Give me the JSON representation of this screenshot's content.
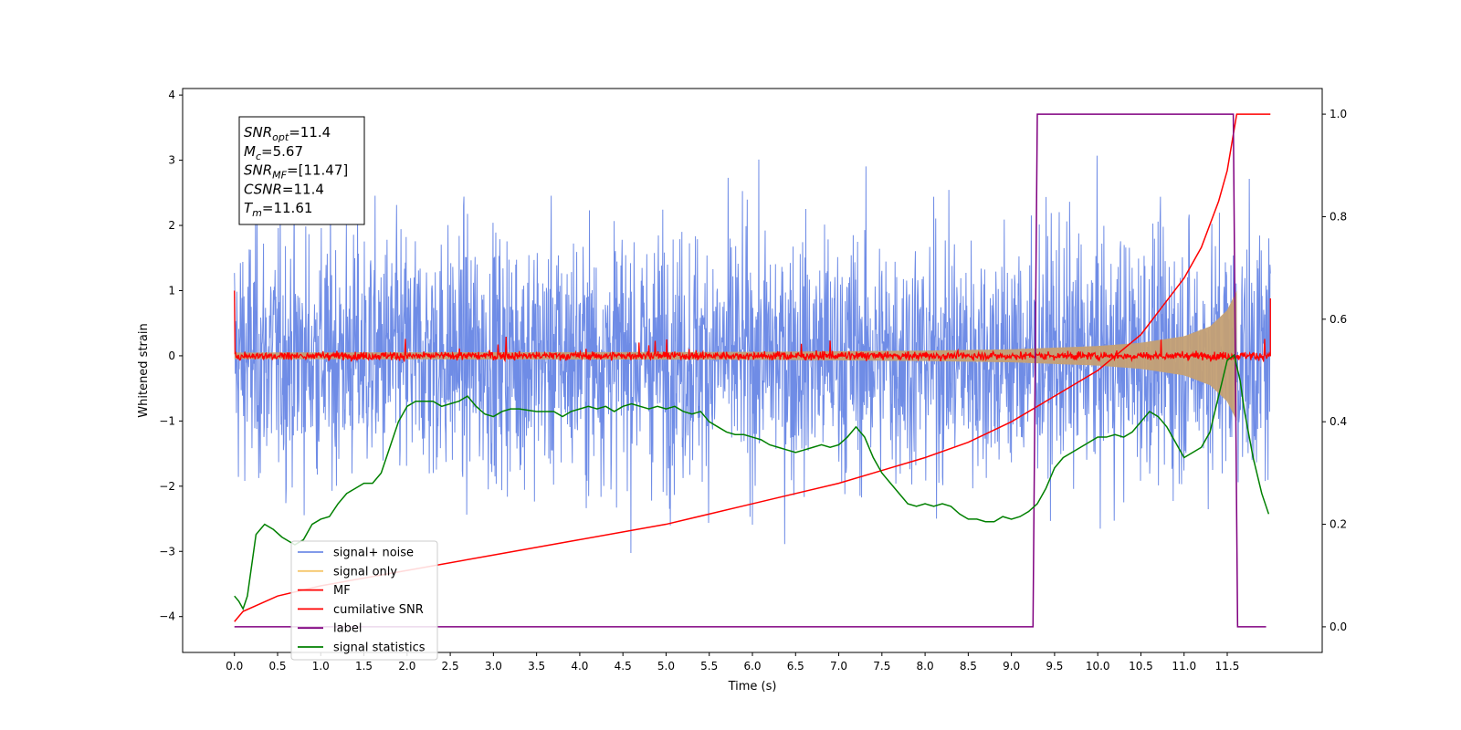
{
  "chart_data": {
    "type": "line",
    "title": "",
    "xlabel": "Time (s)",
    "ylabel": "Whitened strain",
    "xlim": [
      -0.6,
      12.6
    ],
    "ylim": [
      -4.55,
      4.1
    ],
    "y2lim": [
      -0.05,
      1.05
    ],
    "x_ticks": [
      0.0,
      0.5,
      1.0,
      1.5,
      2.0,
      2.5,
      3.0,
      3.5,
      4.0,
      4.5,
      5.0,
      5.5,
      6.0,
      6.5,
      7.0,
      7.5,
      8.0,
      8.5,
      9.0,
      9.5,
      10.0,
      10.5,
      11.0,
      11.5
    ],
    "x_tick_labels": [
      "0.0",
      "0.5",
      "1.0",
      "1.5",
      "2.0",
      "2.5",
      "3.0",
      "3.5",
      "4.0",
      "4.5",
      "5.0",
      "5.5",
      "6.0",
      "6.5",
      "7.0",
      "7.5",
      "8.0",
      "8.5",
      "9.0",
      "9.5",
      "10.0",
      "10.5",
      "11.0",
      "11.5"
    ],
    "y_ticks": [
      4,
      3,
      2,
      1,
      0,
      -1,
      -2,
      -3,
      -4
    ],
    "y_tick_labels": [
      "4",
      "3",
      "2",
      "1",
      "0",
      "−1",
      "−2",
      "−3",
      "−4"
    ],
    "y2_ticks": [
      1.0,
      0.8,
      0.6,
      0.4,
      0.2,
      0.0
    ],
    "y2_tick_labels": [
      "1.0",
      "0.8",
      "0.6",
      "0.4",
      "0.2",
      "0.0"
    ],
    "grid": false,
    "legend_position": "lower-left",
    "annotation": [
      {
        "base": "SNR",
        "sub": "opt",
        "rest": "=11.4"
      },
      {
        "base": "M",
        "sub": "c",
        "rest": "=5.67"
      },
      {
        "base": "SNR",
        "sub": "MF",
        "rest": "=[11.47]"
      },
      {
        "base": "CSNR",
        "sub": "",
        "rest": "=11.4"
      },
      {
        "base": "T",
        "sub": "m",
        "rest": "=11.61"
      }
    ],
    "series": [
      {
        "name": "signal+ noise",
        "color": "#6f8ce6",
        "axis": "left",
        "kind": "noise_band",
        "x_range": [
          0.0,
          12.0
        ],
        "typical_amplitude": 1.8,
        "min": -4.15,
        "max": 3.7
      },
      {
        "name": "signal only",
        "color": "#f5c76c",
        "axis": "left",
        "kind": "chirp_envelope",
        "x_range": [
          0.0,
          11.61
        ],
        "envelope_points": [
          [
            0.0,
            0.05
          ],
          [
            6.0,
            0.06
          ],
          [
            8.0,
            0.08
          ],
          [
            9.0,
            0.1
          ],
          [
            10.0,
            0.15
          ],
          [
            10.5,
            0.2
          ],
          [
            11.0,
            0.3
          ],
          [
            11.3,
            0.45
          ],
          [
            11.5,
            0.7
          ],
          [
            11.61,
            1.0
          ]
        ]
      },
      {
        "name": "MF",
        "color": "#ff0000",
        "axis": "left",
        "kind": "noise_band",
        "x_range": [
          0.0,
          12.0
        ],
        "typical_amplitude": 0.12,
        "min": -0.15,
        "max": 0.3,
        "edge_values": [
          1.0,
          0.88
        ]
      },
      {
        "name": "cumilative SNR",
        "color": "#ff0000",
        "axis": "right",
        "points": [
          [
            0.0,
            0.01
          ],
          [
            0.1,
            0.03
          ],
          [
            0.5,
            0.06
          ],
          [
            1.0,
            0.08
          ],
          [
            2.0,
            0.11
          ],
          [
            3.0,
            0.14
          ],
          [
            4.0,
            0.17
          ],
          [
            5.0,
            0.2
          ],
          [
            6.0,
            0.24
          ],
          [
            7.0,
            0.28
          ],
          [
            7.5,
            0.305
          ],
          [
            8.0,
            0.33
          ],
          [
            8.5,
            0.36
          ],
          [
            9.0,
            0.4
          ],
          [
            9.5,
            0.45
          ],
          [
            10.0,
            0.5
          ],
          [
            10.5,
            0.57
          ],
          [
            11.0,
            0.68
          ],
          [
            11.2,
            0.74
          ],
          [
            11.4,
            0.83
          ],
          [
            11.5,
            0.89
          ],
          [
            11.61,
            1.0
          ],
          [
            12.0,
            1.0
          ]
        ]
      },
      {
        "name": "label",
        "color": "#800080",
        "axis": "right",
        "points": [
          [
            0.0,
            0.0
          ],
          [
            9.25,
            0.0
          ],
          [
            9.3,
            1.0
          ],
          [
            11.57,
            1.0
          ],
          [
            11.62,
            0.0
          ],
          [
            11.95,
            0.0
          ]
        ]
      },
      {
        "name": "signal statistics",
        "color": "#008000",
        "axis": "right",
        "points": [
          [
            0.0,
            0.06
          ],
          [
            0.05,
            0.05
          ],
          [
            0.1,
            0.035
          ],
          [
            0.15,
            0.06
          ],
          [
            0.2,
            0.12
          ],
          [
            0.25,
            0.18
          ],
          [
            0.3,
            0.19
          ],
          [
            0.35,
            0.2
          ],
          [
            0.45,
            0.19
          ],
          [
            0.55,
            0.175
          ],
          [
            0.65,
            0.165
          ],
          [
            0.7,
            0.16
          ],
          [
            0.8,
            0.17
          ],
          [
            0.9,
            0.2
          ],
          [
            1.0,
            0.21
          ],
          [
            1.1,
            0.215
          ],
          [
            1.2,
            0.24
          ],
          [
            1.3,
            0.26
          ],
          [
            1.4,
            0.27
          ],
          [
            1.5,
            0.28
          ],
          [
            1.6,
            0.28
          ],
          [
            1.7,
            0.3
          ],
          [
            1.8,
            0.35
          ],
          [
            1.9,
            0.4
          ],
          [
            2.0,
            0.43
          ],
          [
            2.1,
            0.44
          ],
          [
            2.2,
            0.44
          ],
          [
            2.3,
            0.44
          ],
          [
            2.4,
            0.43
          ],
          [
            2.5,
            0.435
          ],
          [
            2.6,
            0.44
          ],
          [
            2.7,
            0.45
          ],
          [
            2.8,
            0.43
          ],
          [
            2.9,
            0.415
          ],
          [
            3.0,
            0.41
          ],
          [
            3.1,
            0.42
          ],
          [
            3.2,
            0.425
          ],
          [
            3.3,
            0.425
          ],
          [
            3.5,
            0.42
          ],
          [
            3.7,
            0.42
          ],
          [
            3.8,
            0.41
          ],
          [
            3.9,
            0.42
          ],
          [
            4.0,
            0.425
          ],
          [
            4.1,
            0.43
          ],
          [
            4.2,
            0.425
          ],
          [
            4.3,
            0.43
          ],
          [
            4.4,
            0.42
          ],
          [
            4.5,
            0.43
          ],
          [
            4.6,
            0.435
          ],
          [
            4.7,
            0.43
          ],
          [
            4.8,
            0.425
          ],
          [
            4.9,
            0.43
          ],
          [
            5.0,
            0.425
          ],
          [
            5.1,
            0.43
          ],
          [
            5.2,
            0.42
          ],
          [
            5.3,
            0.415
          ],
          [
            5.4,
            0.42
          ],
          [
            5.5,
            0.4
          ],
          [
            5.6,
            0.39
          ],
          [
            5.7,
            0.38
          ],
          [
            5.8,
            0.375
          ],
          [
            5.9,
            0.375
          ],
          [
            6.0,
            0.37
          ],
          [
            6.1,
            0.365
          ],
          [
            6.2,
            0.355
          ],
          [
            6.3,
            0.35
          ],
          [
            6.4,
            0.345
          ],
          [
            6.5,
            0.34
          ],
          [
            6.6,
            0.345
          ],
          [
            6.7,
            0.35
          ],
          [
            6.8,
            0.355
          ],
          [
            6.9,
            0.35
          ],
          [
            7.0,
            0.355
          ],
          [
            7.1,
            0.37
          ],
          [
            7.2,
            0.39
          ],
          [
            7.3,
            0.37
          ],
          [
            7.4,
            0.33
          ],
          [
            7.5,
            0.3
          ],
          [
            7.6,
            0.28
          ],
          [
            7.7,
            0.26
          ],
          [
            7.8,
            0.24
          ],
          [
            7.9,
            0.235
          ],
          [
            8.0,
            0.24
          ],
          [
            8.1,
            0.235
          ],
          [
            8.2,
            0.24
          ],
          [
            8.3,
            0.235
          ],
          [
            8.4,
            0.22
          ],
          [
            8.5,
            0.21
          ],
          [
            8.6,
            0.21
          ],
          [
            8.7,
            0.205
          ],
          [
            8.8,
            0.205
          ],
          [
            8.9,
            0.215
          ],
          [
            9.0,
            0.21
          ],
          [
            9.1,
            0.215
          ],
          [
            9.2,
            0.225
          ],
          [
            9.3,
            0.24
          ],
          [
            9.4,
            0.27
          ],
          [
            9.5,
            0.31
          ],
          [
            9.6,
            0.33
          ],
          [
            9.7,
            0.34
          ],
          [
            9.8,
            0.35
          ],
          [
            9.9,
            0.36
          ],
          [
            10.0,
            0.37
          ],
          [
            10.1,
            0.37
          ],
          [
            10.2,
            0.375
          ],
          [
            10.3,
            0.37
          ],
          [
            10.4,
            0.38
          ],
          [
            10.5,
            0.4
          ],
          [
            10.6,
            0.42
          ],
          [
            10.7,
            0.41
          ],
          [
            10.8,
            0.39
          ],
          [
            10.9,
            0.36
          ],
          [
            11.0,
            0.33
          ],
          [
            11.1,
            0.34
          ],
          [
            11.2,
            0.35
          ],
          [
            11.3,
            0.38
          ],
          [
            11.4,
            0.45
          ],
          [
            11.5,
            0.52
          ],
          [
            11.58,
            0.53
          ],
          [
            11.65,
            0.48
          ],
          [
            11.7,
            0.42
          ],
          [
            11.8,
            0.33
          ],
          [
            11.9,
            0.26
          ],
          [
            11.98,
            0.22
          ]
        ]
      }
    ]
  }
}
